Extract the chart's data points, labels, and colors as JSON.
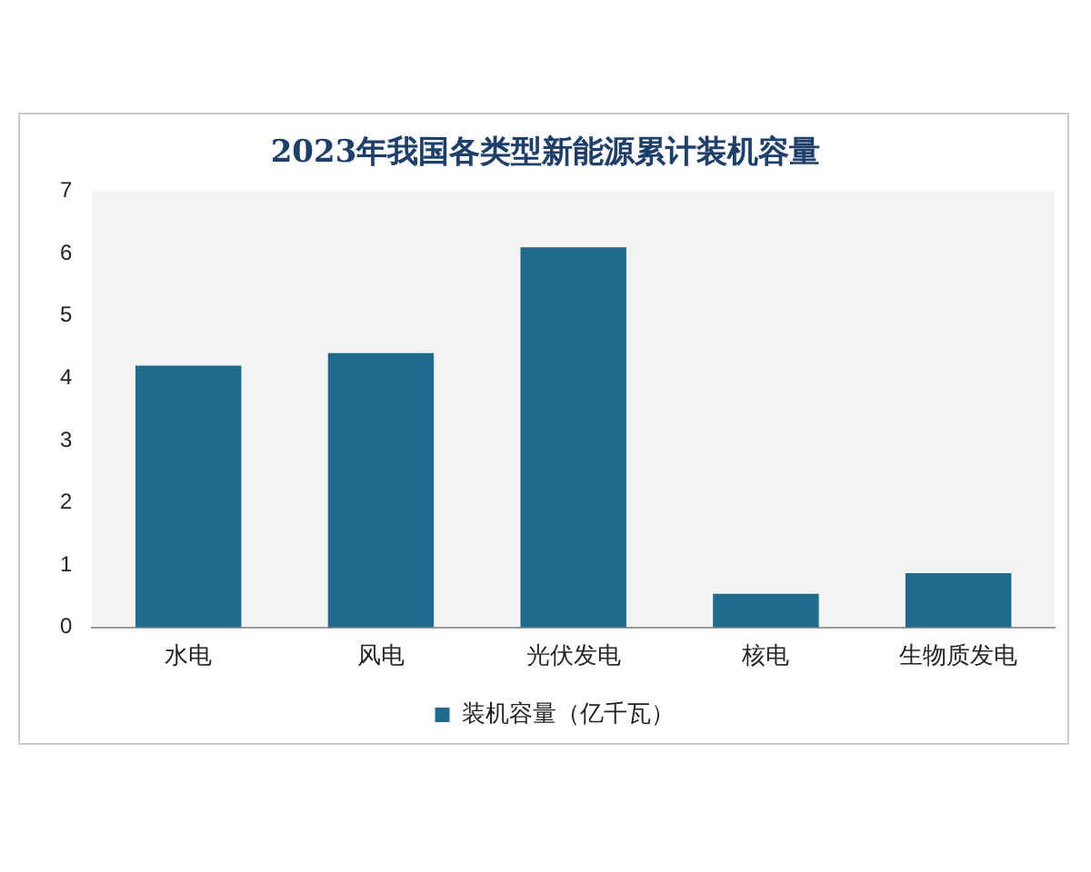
{
  "chart_data": {
    "type": "bar",
    "title": "2023年我国各类型新能源累计装机容量",
    "categories": [
      "水电",
      "风电",
      "光伏发电",
      "核电",
      "生物质发电"
    ],
    "series": [
      {
        "name": "装机容量（亿千瓦）",
        "color": "#1f6b8e",
        "values": [
          4.2,
          4.4,
          6.1,
          0.54,
          0.87
        ]
      }
    ],
    "ylim": [
      0,
      7
    ],
    "yticks": [
      0,
      1,
      2,
      3,
      4,
      5,
      6,
      7
    ],
    "grid": false,
    "legend": "bottom"
  }
}
